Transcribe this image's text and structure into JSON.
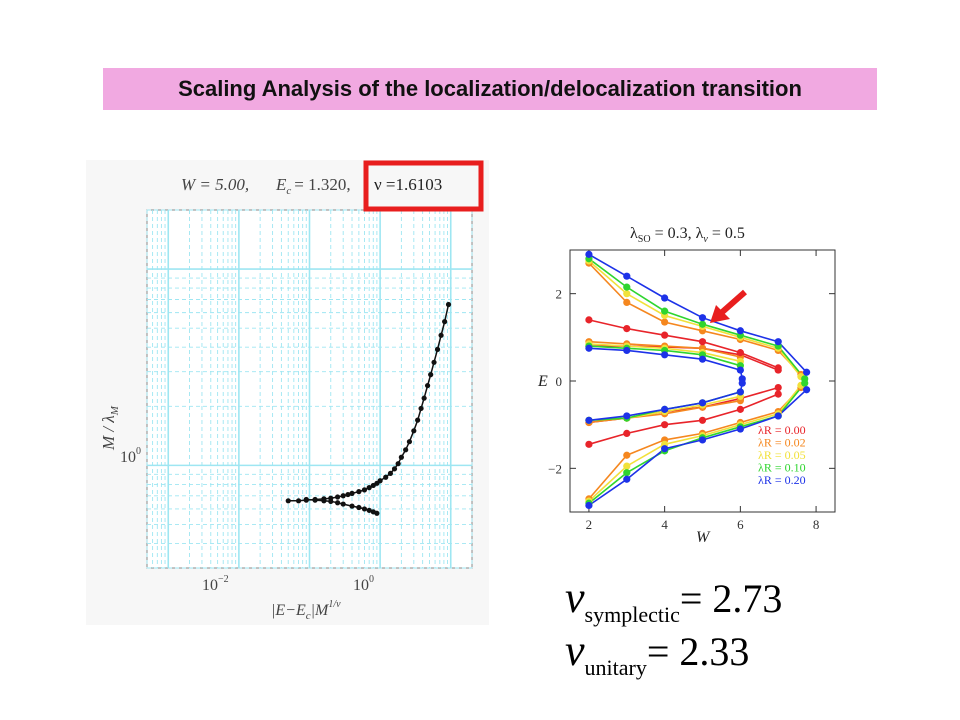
{
  "slide": {
    "title": "Scaling Analysis of the localization/delocalization transition"
  },
  "left_plot": {
    "header": {
      "w_label": "W = 5.00,",
      "ec_label": "E",
      "ec_sub": "c",
      "ec_value": "= 1.320,",
      "nu_label": "ν =1.6103"
    },
    "ylabel": "M / λ",
    "ylabel_sub": "M",
    "ytick": "10",
    "ytick_exp": "0",
    "xticks": [
      {
        "base": "10",
        "exp": "−2"
      },
      {
        "base": "10",
        "exp": "0"
      }
    ],
    "xlabel_main": "|E−E",
    "xlabel_c": "c",
    "xlabel_tail": "|M",
    "xlabel_exp": "1/ν"
  },
  "right_plot": {
    "header": "λSO = 0.3, λv = 0.5",
    "header_parts": {
      "l1": "λ",
      "s1": "SO",
      "v1": " = 0.3, ",
      "l2": "λ",
      "s2": "v",
      "v2": " = 0.5"
    },
    "ylabel": "E",
    "xlabel": "W",
    "yticks": [
      "2",
      "0",
      "−2"
    ],
    "xticks": [
      "2",
      "4",
      "6",
      "8"
    ],
    "legend": [
      {
        "label": "λR = 0.00",
        "color": "#e8242a"
      },
      {
        "label": "λR = 0.02",
        "color": "#f5871f"
      },
      {
        "label": "λR = 0.05",
        "color": "#f1e13a"
      },
      {
        "label": "λR = 0.10",
        "color": "#2fd52f"
      },
      {
        "label": "λR = 0.20",
        "color": "#1d32e8"
      }
    ]
  },
  "formulas": {
    "nu_symbol": "ν",
    "symplectic_sub": "symplectic",
    "symplectic_value": "= 2.73",
    "unitary_sub": "unitary",
    "unitary_value": "= 2.33"
  },
  "colors": {
    "banner": "#f1a9e1",
    "highlight_box": "#e81e1e",
    "arrow": "#e81e1e",
    "grid": "#9ee6f2"
  },
  "chart_data": [
    {
      "type": "scatter",
      "title": "W = 5.00, Ec = 1.320, ν =1.6103",
      "xlabel": "|E−Ec|M^(1/ν)",
      "ylabel": "M / λM",
      "xscale": "log",
      "yscale": "log",
      "xlim": [
        0.0005,
        20
      ],
      "ylim": [
        0.3,
        20
      ],
      "grid": true,
      "series": [
        {
          "values": [
            [
              0.05,
              0.66
            ],
            [
              0.07,
              0.66
            ],
            [
              0.09,
              0.665
            ],
            [
              0.12,
              0.67
            ],
            [
              0.16,
              0.675
            ],
            [
              0.2,
              0.68
            ],
            [
              0.25,
              0.69
            ],
            [
              0.3,
              0.7
            ],
            [
              0.35,
              0.71
            ],
            [
              0.4,
              0.72
            ],
            [
              0.5,
              0.735
            ],
            [
              0.6,
              0.75
            ],
            [
              0.7,
              0.77
            ],
            [
              0.8,
              0.79
            ],
            [
              0.9,
              0.81
            ],
            [
              1.0,
              0.835
            ],
            [
              1.2,
              0.87
            ],
            [
              1.4,
              0.91
            ],
            [
              1.6,
              0.96
            ],
            [
              1.8,
              1.02
            ],
            [
              2.0,
              1.1
            ],
            [
              2.3,
              1.2
            ],
            [
              2.6,
              1.32
            ],
            [
              3.0,
              1.5
            ],
            [
              3.4,
              1.7
            ],
            [
              3.8,
              1.95
            ],
            [
              4.2,
              2.2
            ],
            [
              4.7,
              2.55
            ],
            [
              5.2,
              2.9
            ],
            [
              5.8,
              3.35
            ],
            [
              6.5,
              3.9
            ],
            [
              7.3,
              4.6
            ],
            [
              8.2,
              5.4
            ],
            [
              9.3,
              6.6
            ]
          ]
        },
        {
          "values": [
            [
              0.09,
              0.67
            ],
            [
              0.12,
              0.665
            ],
            [
              0.16,
              0.66
            ],
            [
              0.2,
              0.655
            ],
            [
              0.25,
              0.645
            ],
            [
              0.3,
              0.635
            ],
            [
              0.4,
              0.62
            ],
            [
              0.5,
              0.61
            ],
            [
              0.6,
              0.6
            ],
            [
              0.7,
              0.59
            ],
            [
              0.8,
              0.58
            ],
            [
              0.9,
              0.57
            ]
          ]
        }
      ]
    },
    {
      "type": "line",
      "title": "λSO = 0.3, λv = 0.5",
      "xlabel": "W",
      "ylabel": "E",
      "xlim": [
        1.5,
        8.5
      ],
      "ylim": [
        -3.0,
        3.0
      ],
      "legend": "bottom-right",
      "series": [
        {
          "name": "λR = 0.00",
          "color": "#e8242a",
          "upper": [
            [
              2,
              1.4
            ],
            [
              3,
              1.2
            ],
            [
              4,
              1.05
            ],
            [
              5,
              0.9
            ],
            [
              6,
              0.65
            ],
            [
              7,
              0.3
            ]
          ],
          "lower": [
            [
              2,
              -1.45
            ],
            [
              3,
              -1.2
            ],
            [
              4,
              -1.0
            ],
            [
              5,
              -0.9
            ],
            [
              6,
              -0.65
            ],
            [
              7,
              -0.3
            ]
          ]
        },
        {
          "name": "λR = 0.02",
          "color": "#f5871f",
          "upper": [
            [
              2,
              2.7
            ],
            [
              3,
              1.8
            ],
            [
              4,
              1.35
            ],
            [
              5,
              1.15
            ],
            [
              6,
              0.95
            ],
            [
              7,
              0.7
            ],
            [
              7.6,
              0.15
            ]
          ],
          "lower": [
            [
              2,
              -2.7
            ],
            [
              3,
              -1.7
            ],
            [
              4,
              -1.35
            ],
            [
              5,
              -1.2
            ],
            [
              6,
              -0.95
            ],
            [
              7,
              -0.7
            ],
            [
              7.6,
              -0.15
            ]
          ]
        },
        {
          "name": "λR = 0.05",
          "color": "#f1e13a",
          "upper": [
            [
              2,
              2.75
            ],
            [
              3,
              2.0
            ],
            [
              4,
              1.5
            ],
            [
              5,
              1.25
            ],
            [
              6,
              1.0
            ],
            [
              7,
              0.75
            ],
            [
              7.6,
              0.1
            ]
          ],
          "lower": [
            [
              2,
              -2.75
            ],
            [
              3,
              -1.95
            ],
            [
              4,
              -1.45
            ],
            [
              5,
              -1.25
            ],
            [
              6,
              -1.0
            ],
            [
              7,
              -0.75
            ],
            [
              7.6,
              -0.1
            ]
          ]
        },
        {
          "name": "λR = 0.10",
          "color": "#2fd52f",
          "upper": [
            [
              2,
              2.8
            ],
            [
              3,
              2.15
            ],
            [
              4,
              1.6
            ],
            [
              5,
              1.3
            ],
            [
              6,
              1.05
            ],
            [
              7,
              0.8
            ],
            [
              7.7,
              0.05
            ]
          ],
          "lower": [
            [
              2,
              -2.8
            ],
            [
              3,
              -2.1
            ],
            [
              4,
              -1.6
            ],
            [
              5,
              -1.3
            ],
            [
              6,
              -1.05
            ],
            [
              7,
              -0.8
            ],
            [
              7.7,
              -0.05
            ]
          ]
        },
        {
          "name": "λR = 0.20",
          "color": "#1d32e8",
          "upper": [
            [
              2,
              2.9
            ],
            [
              3,
              2.4
            ],
            [
              4,
              1.9
            ],
            [
              5,
              1.45
            ],
            [
              6,
              1.15
            ],
            [
              7,
              0.9
            ],
            [
              7.75,
              0.2
            ]
          ],
          "lower": [
            [
              2,
              -2.85
            ],
            [
              3,
              -2.25
            ],
            [
              4,
              -1.55
            ],
            [
              5,
              -1.35
            ],
            [
              6,
              -1.1
            ],
            [
              7,
              -0.8
            ],
            [
              7.75,
              -0.2
            ]
          ]
        }
      ],
      "inner_branches": [
        {
          "color": "#e8242a",
          "upper": [
            [
              2,
              0.8
            ],
            [
              3,
              0.8
            ],
            [
              4,
              0.78
            ],
            [
              5,
              0.75
            ],
            [
              6,
              0.6
            ],
            [
              7,
              0.25
            ]
          ],
          "lower": [
            [
              2,
              -0.95
            ],
            [
              3,
              -0.85
            ],
            [
              4,
              -0.7
            ],
            [
              5,
              -0.6
            ],
            [
              6,
              -0.4
            ],
            [
              7,
              -0.15
            ]
          ]
        },
        {
          "color": "#f5871f",
          "upper": [
            [
              2,
              0.9
            ],
            [
              3,
              0.85
            ],
            [
              4,
              0.8
            ],
            [
              5,
              0.75
            ],
            [
              6,
              0.55
            ]
          ],
          "lower": [
            [
              2,
              -0.95
            ],
            [
              3,
              -0.85
            ],
            [
              4,
              -0.75
            ],
            [
              5,
              -0.6
            ],
            [
              6,
              -0.45
            ]
          ]
        },
        {
          "color": "#f1e13a",
          "upper": [
            [
              2,
              0.85
            ],
            [
              3,
              0.8
            ],
            [
              4,
              0.75
            ],
            [
              5,
              0.65
            ],
            [
              6,
              0.45
            ]
          ],
          "lower": [
            [
              2,
              -0.9
            ],
            [
              3,
              -0.85
            ],
            [
              4,
              -0.7
            ],
            [
              5,
              -0.55
            ],
            [
              6,
              -0.35
            ]
          ]
        },
        {
          "color": "#2fd52f",
          "upper": [
            [
              2,
              0.8
            ],
            [
              3,
              0.75
            ],
            [
              4,
              0.7
            ],
            [
              5,
              0.6
            ],
            [
              6,
              0.35
            ]
          ],
          "lower": [
            [
              2,
              -0.9
            ],
            [
              3,
              -0.85
            ],
            [
              4,
              -0.65
            ],
            [
              5,
              -0.5
            ],
            [
              6,
              -0.25
            ]
          ]
        },
        {
          "color": "#1d32e8",
          "upper": [
            [
              2,
              0.75
            ],
            [
              3,
              0.7
            ],
            [
              4,
              0.6
            ],
            [
              5,
              0.5
            ],
            [
              6,
              0.25
            ],
            [
              6.05,
              0.05
            ]
          ],
          "lower": [
            [
              2,
              -0.9
            ],
            [
              3,
              -0.8
            ],
            [
              4,
              -0.65
            ],
            [
              5,
              -0.5
            ],
            [
              6,
              -0.25
            ],
            [
              6.05,
              -0.05
            ]
          ]
        }
      ]
    }
  ]
}
